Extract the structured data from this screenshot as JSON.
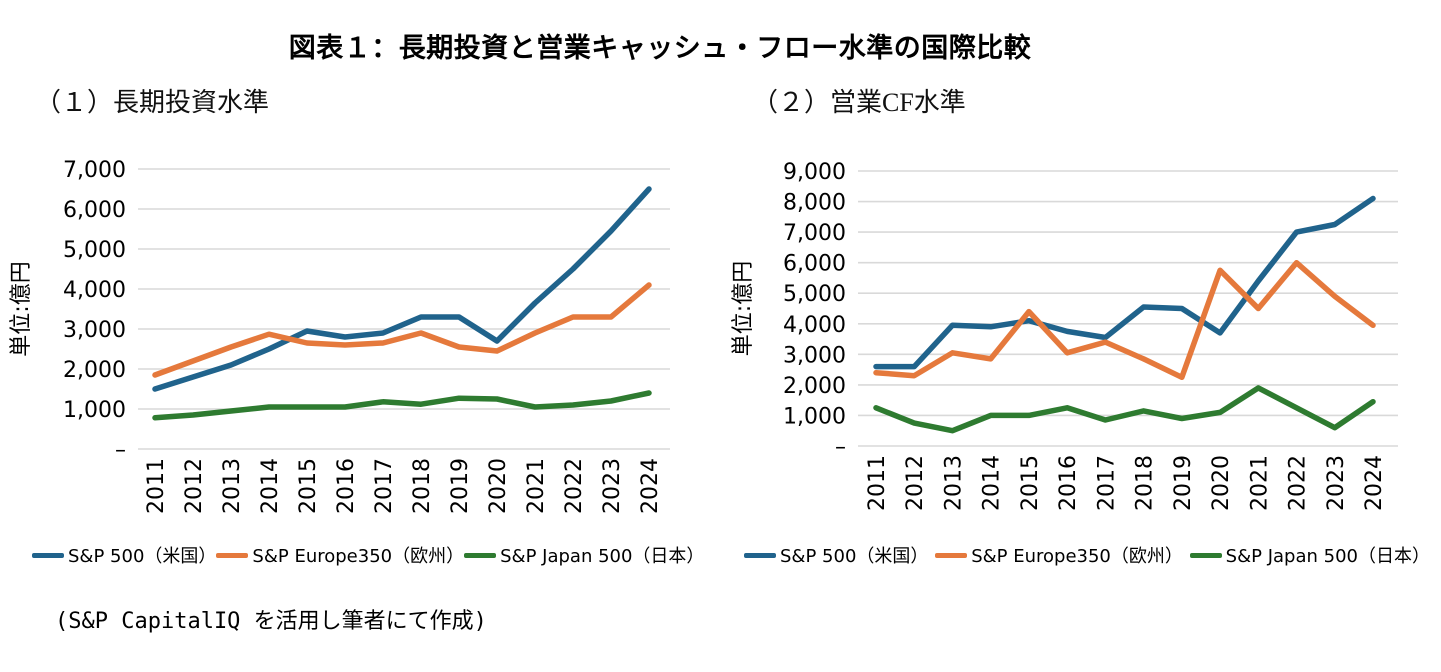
{
  "page": {
    "title": "図表１：長期投資と営業キャッシュ・フロー水準の国際比較",
    "footnote": "(S&P CapitalIQ を活用し筆者にて作成)"
  },
  "colors": {
    "us": "#20638C",
    "europe": "#E5793C",
    "japan": "#2E7B30",
    "gridline": "#D9D9D9",
    "tick_text": "#000000"
  },
  "chart_data": [
    {
      "type": "line",
      "title": "（１）長期投資水準",
      "ylabel": "単位:億円",
      "categories": [
        "2011",
        "2012",
        "2013",
        "2014",
        "2015",
        "2016",
        "2017",
        "2018",
        "2019",
        "2020",
        "2021",
        "2022",
        "2023",
        "2024"
      ],
      "ylim": [
        0,
        7000
      ],
      "ytick_step": 1000,
      "ytick_labels": [
        "–",
        "1,000",
        "2,000",
        "3,000",
        "4,000",
        "5,000",
        "6,000",
        "7,000"
      ],
      "grid": true,
      "legend_position": "bottom",
      "series": [
        {
          "name": "S&P 500（米国）",
          "color_key": "us",
          "values": [
            1500,
            1800,
            2100,
            2500,
            2950,
            2800,
            2900,
            3300,
            3300,
            2700,
            3650,
            4500,
            5450,
            6500
          ]
        },
        {
          "name": "S&P Europe350（欧州）",
          "color_key": "europe",
          "values": [
            1850,
            2200,
            2550,
            2870,
            2650,
            2600,
            2650,
            2900,
            2550,
            2450,
            2900,
            3300,
            3300,
            4100
          ]
        },
        {
          "name": "S&P Japan 500（日本）",
          "color_key": "japan",
          "values": [
            780,
            850,
            950,
            1050,
            1050,
            1050,
            1180,
            1120,
            1270,
            1250,
            1050,
            1100,
            1200,
            1400
          ]
        }
      ]
    },
    {
      "type": "line",
      "title": "（２）営業CF水準",
      "ylabel": "単位:億円",
      "categories": [
        "2011",
        "2012",
        "2013",
        "2014",
        "2015",
        "2016",
        "2017",
        "2018",
        "2019",
        "2020",
        "2021",
        "2022",
        "2023",
        "2024"
      ],
      "ylim": [
        0,
        9000
      ],
      "ytick_step": 1000,
      "ytick_labels": [
        "–",
        "1,000",
        "2,000",
        "3,000",
        "4,000",
        "5,000",
        "6,000",
        "7,000",
        "8,000",
        "9,000"
      ],
      "grid": true,
      "legend_position": "bottom",
      "series": [
        {
          "name": "S&P 500（米国）",
          "color_key": "us",
          "values": [
            2600,
            2600,
            3950,
            3900,
            4100,
            3750,
            3550,
            4550,
            4500,
            3700,
            5400,
            7000,
            7250,
            8100
          ]
        },
        {
          "name": "S&P Europe350（欧州）",
          "color_key": "europe",
          "values": [
            2400,
            2300,
            3050,
            2850,
            4400,
            3050,
            3400,
            2850,
            2250,
            5750,
            4500,
            6000,
            4900,
            3950
          ]
        },
        {
          "name": "S&P Japan 500（日本）",
          "color_key": "japan",
          "values": [
            1250,
            750,
            500,
            1000,
            1000,
            1250,
            850,
            1150,
            900,
            1100,
            1900,
            1250,
            600,
            1450
          ]
        }
      ]
    }
  ]
}
